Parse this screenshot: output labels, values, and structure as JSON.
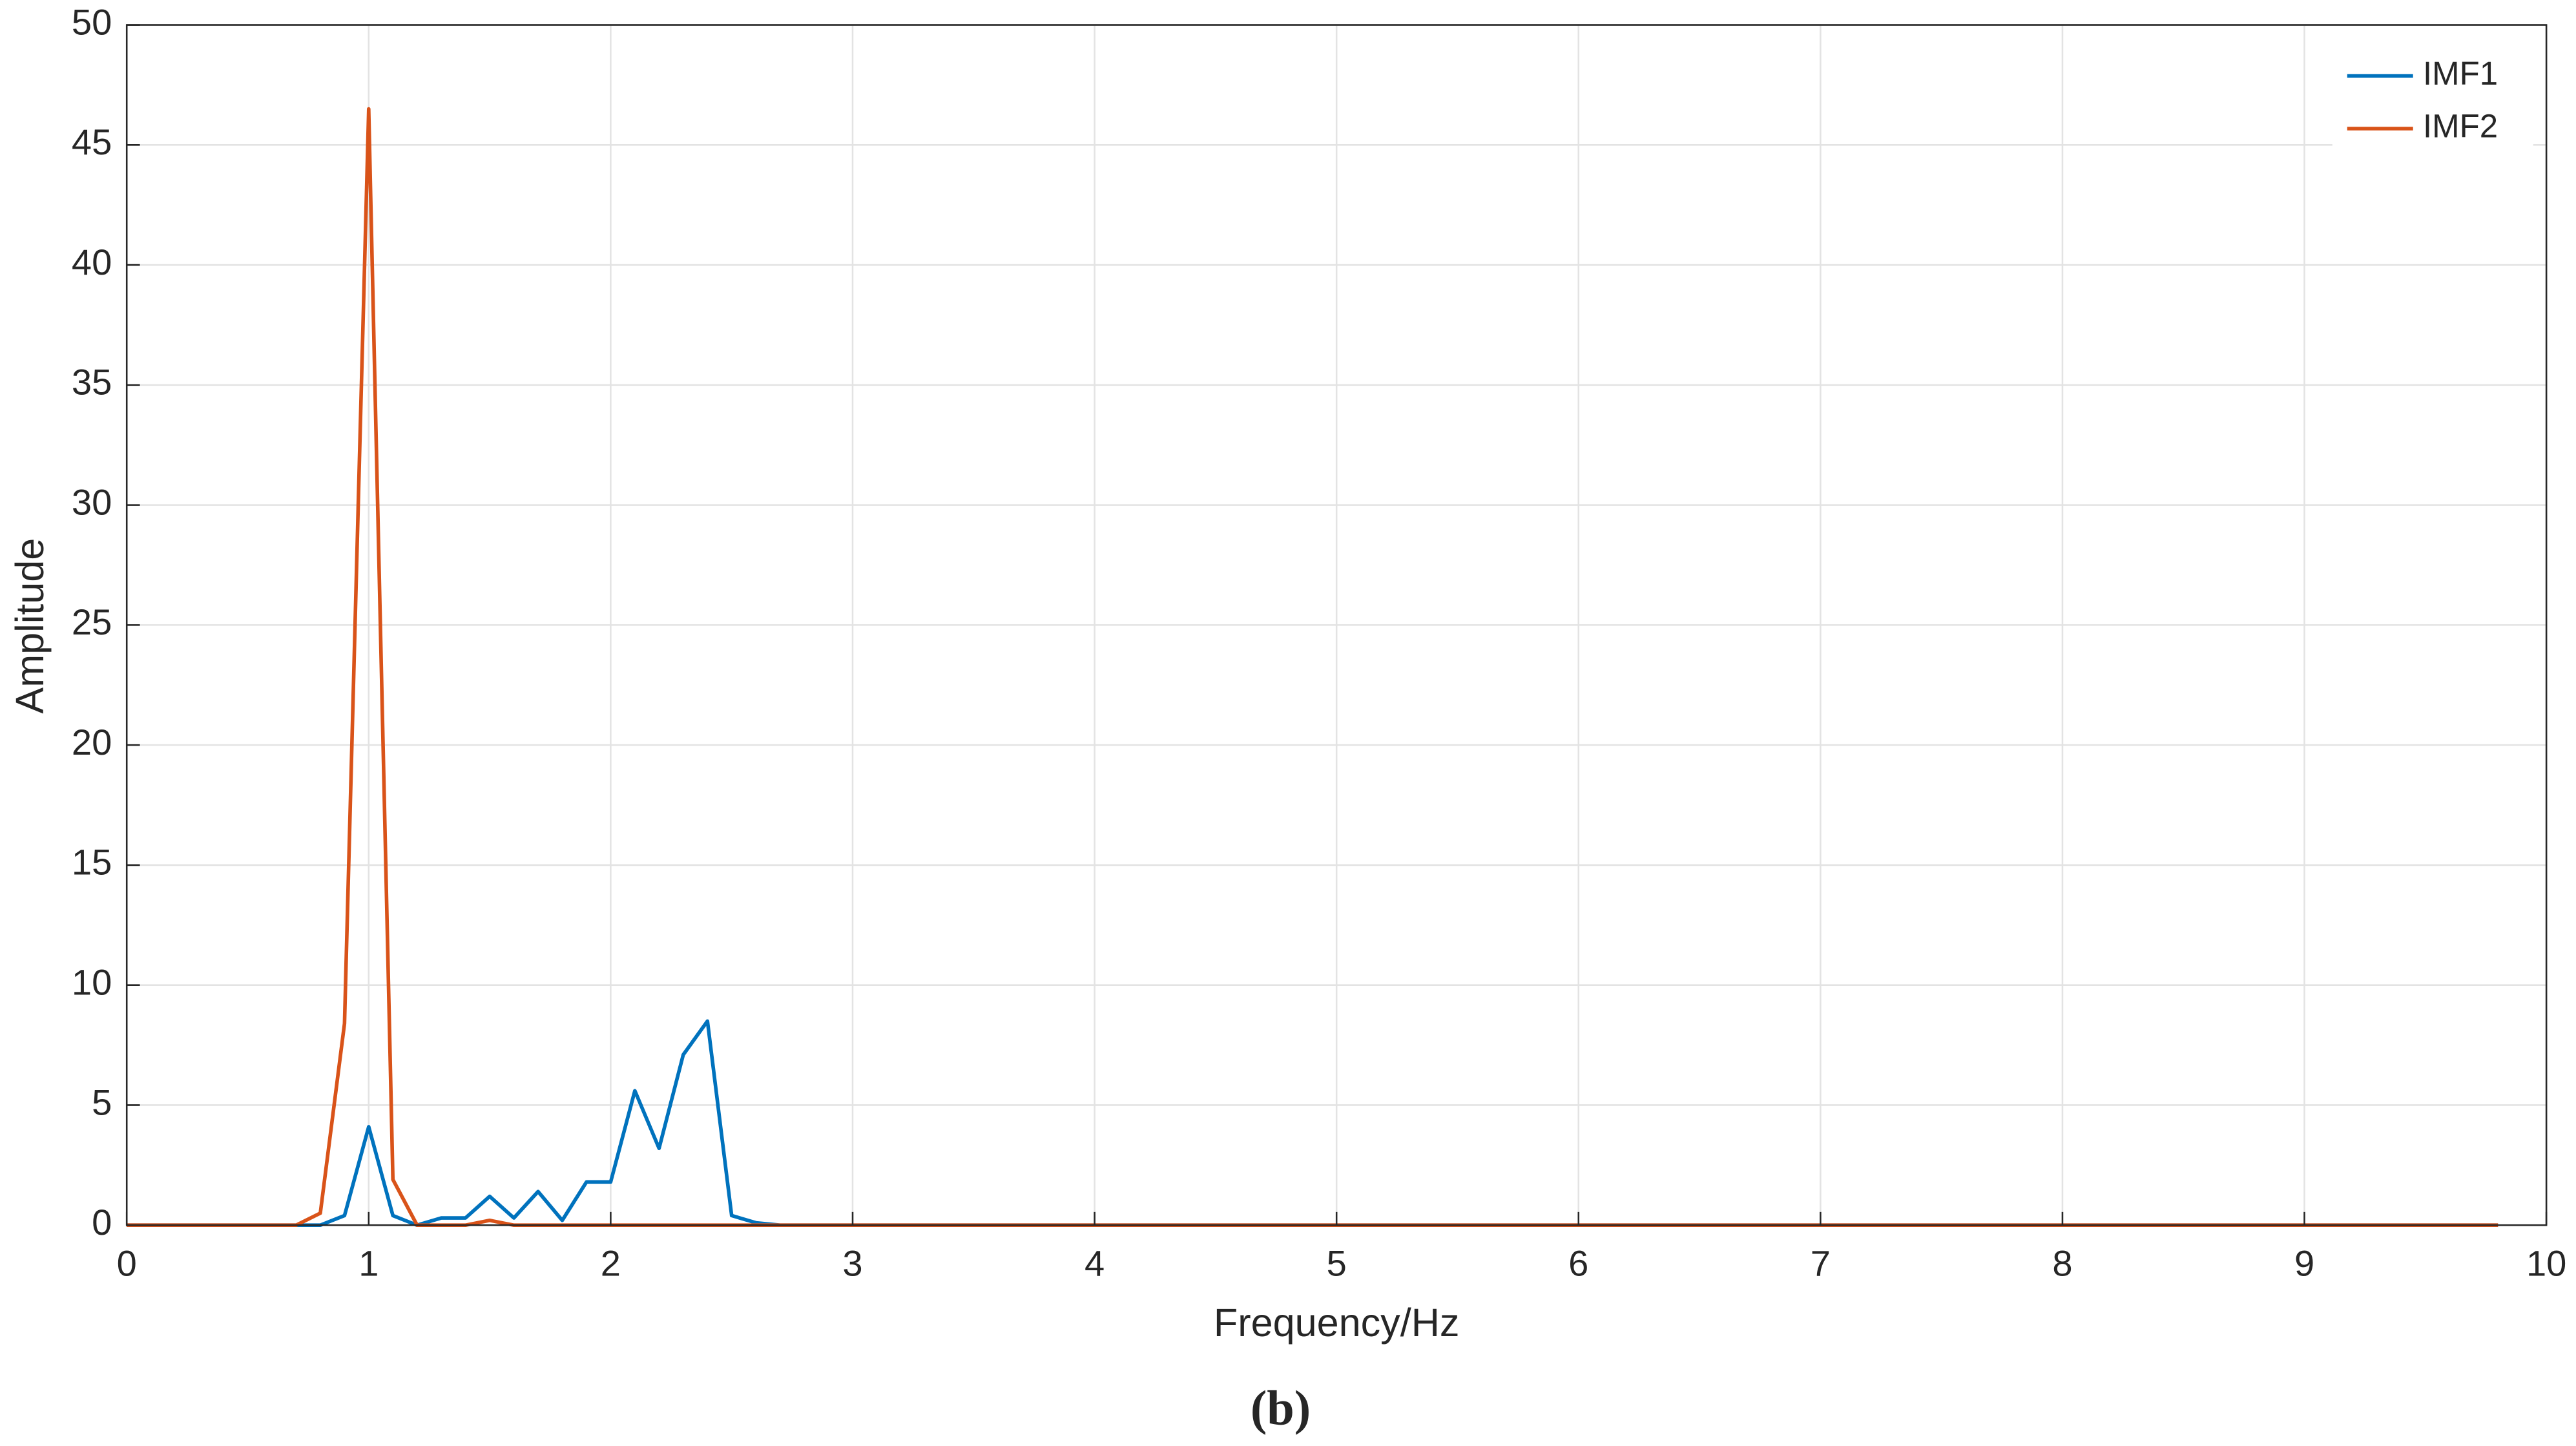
{
  "chart_data": {
    "type": "line",
    "xlabel": "Frequency/Hz",
    "ylabel": "Amplitude",
    "caption": "(b)",
    "x": [
      0,
      0.1,
      0.2,
      0.3,
      0.4,
      0.5,
      0.6,
      0.7,
      0.8,
      0.9,
      1,
      1.1,
      1.2,
      1.3,
      1.4,
      1.5,
      1.6,
      1.7,
      1.8,
      1.9,
      2,
      2.1,
      2.2,
      2.3,
      2.4,
      2.5,
      2.6,
      2.7,
      2.8,
      2.9,
      3,
      3.1,
      3.2,
      3.3,
      3.4,
      3.5,
      3.6,
      3.7,
      3.8,
      3.9,
      4,
      4.1,
      4.2,
      4.3,
      4.4,
      4.5,
      4.6,
      4.7,
      4.8,
      4.9,
      5,
      5.1,
      5.2,
      5.3,
      5.4,
      5.5,
      5.6,
      5.7,
      5.8,
      5.9,
      6,
      6.1,
      6.2,
      6.3,
      6.4,
      6.5,
      6.6,
      6.7,
      6.8,
      6.9,
      7,
      7.1,
      7.2,
      7.3,
      7.4,
      7.5,
      7.6,
      7.7,
      7.8,
      7.9,
      8,
      8.1,
      8.2,
      8.3,
      8.4,
      8.5,
      8.6,
      8.7,
      8.8,
      8.9,
      9,
      9.1,
      9.2,
      9.3,
      9.4,
      9.5,
      9.6,
      9.7,
      9.8
    ],
    "series": [
      {
        "name": "IMF1",
        "color": "#0072bd",
        "values": [
          0,
          0,
          0,
          0,
          0,
          0,
          0,
          0,
          0,
          0.4,
          4.1,
          0.4,
          0,
          0.3,
          0.3,
          1.2,
          0.3,
          1.4,
          0.2,
          1.8,
          1.8,
          5.6,
          3.2,
          7.1,
          8.5,
          0.4,
          0.1,
          0,
          0,
          0,
          0,
          0,
          0,
          0,
          0,
          0,
          0,
          0,
          0,
          0,
          0,
          0,
          0,
          0,
          0,
          0,
          0,
          0,
          0,
          0,
          0,
          0,
          0,
          0,
          0,
          0,
          0,
          0,
          0,
          0,
          0,
          0,
          0,
          0,
          0,
          0,
          0,
          0,
          0,
          0,
          0,
          0,
          0,
          0,
          0,
          0,
          0,
          0,
          0,
          0,
          0,
          0,
          0,
          0,
          0,
          0,
          0,
          0,
          0,
          0,
          0,
          0,
          0,
          0,
          0,
          0,
          0,
          0,
          0
        ]
      },
      {
        "name": "IMF2",
        "color": "#d95319",
        "values": [
          0,
          0,
          0,
          0,
          0,
          0,
          0,
          0,
          0.5,
          8.4,
          46.5,
          1.9,
          0,
          0,
          0,
          0.2,
          0,
          0,
          0,
          0,
          0,
          0,
          0,
          0,
          0,
          0,
          0,
          0,
          0,
          0,
          0,
          0,
          0,
          0,
          0,
          0,
          0,
          0,
          0,
          0,
          0,
          0,
          0,
          0,
          0,
          0,
          0,
          0,
          0,
          0,
          0,
          0,
          0,
          0,
          0,
          0,
          0,
          0,
          0,
          0,
          0,
          0,
          0,
          0,
          0,
          0,
          0,
          0,
          0,
          0,
          0,
          0,
          0,
          0,
          0,
          0,
          0,
          0,
          0,
          0,
          0,
          0,
          0,
          0,
          0,
          0,
          0,
          0,
          0,
          0,
          0,
          0,
          0,
          0,
          0,
          0,
          0,
          0,
          0
        ]
      }
    ],
    "xlim": [
      0,
      10
    ],
    "xticks": [
      0,
      1,
      2,
      3,
      4,
      5,
      6,
      7,
      8,
      9,
      10
    ],
    "ylim": [
      0,
      50
    ],
    "yticks": [
      0,
      5,
      10,
      15,
      20,
      25,
      30,
      35,
      40,
      45,
      50
    ],
    "grid": true,
    "legend": "upper-right"
  }
}
